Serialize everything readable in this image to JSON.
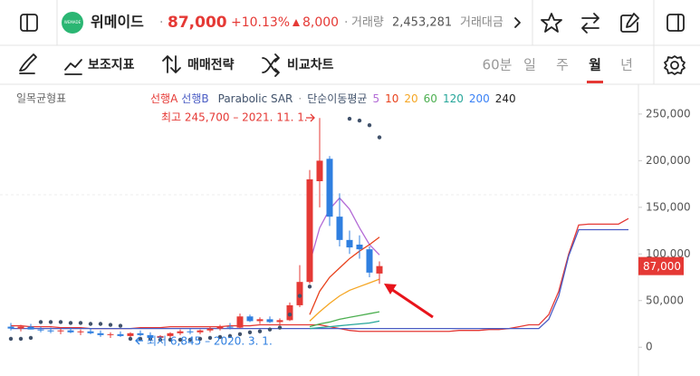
{
  "header": {
    "logo": "WEMADE",
    "name": "위메이드",
    "price": "87,000",
    "change_pct": "+10.13%",
    "change": "8,000",
    "volume_label": "거래량",
    "volume": "2,453,281",
    "amount_label": "거래대금"
  },
  "toolbar": {
    "indicators": "보조지표",
    "strategy": "매매전략",
    "compare": "비교차트",
    "periods": [
      "60분",
      "일",
      "주",
      "월",
      "년"
    ],
    "selected_period": 3
  },
  "chart_data": {
    "type": "candlestick",
    "indicator_label": "일목균형표",
    "ma_label": "단순이동평균",
    "high_label": "최고 245,700 – 2021. 11. 1.",
    "low_label": "최저 6,845 – 2020. 3. 1.",
    "categories": [
      null,
      null,
      null,
      null,
      null,
      null,
      null,
      null,
      null,
      null,
      null,
      null,
      null,
      null,
      null,
      null,
      null,
      null,
      null,
      null,
      null,
      null,
      null,
      null,
      null,
      null,
      null,
      null,
      null,
      null,
      null,
      null,
      null,
      null,
      null,
      null,
      null,
      null,
      null,
      null,
      null,
      null,
      null,
      null,
      null,
      null,
      null,
      null,
      null,
      null,
      null,
      null,
      null,
      null,
      null,
      null,
      null,
      null,
      null,
      null,
      null,
      null,
      null
    ],
    "open": [
      22000,
      20000,
      22000,
      19000,
      18000,
      17000,
      18000,
      16000,
      17000,
      15000,
      13000,
      14000,
      12000,
      15000,
      13000,
      10000,
      12000,
      15000,
      17000,
      16000,
      18000,
      20000,
      22000,
      21000,
      33000,
      28000,
      30000,
      27000,
      29000,
      45000,
      70000,
      178000,
      202000,
      140000,
      115000,
      110000,
      105000,
      79000,
      null,
      null,
      null,
      null,
      null,
      null,
      null,
      null,
      null,
      null,
      null,
      null,
      null,
      null,
      null,
      null,
      null,
      null,
      null,
      null,
      null,
      null,
      null,
      null,
      null
    ],
    "high": [
      26000,
      24000,
      25000,
      22000,
      21000,
      20000,
      21000,
      19000,
      20000,
      18000,
      16000,
      17000,
      16000,
      18000,
      16000,
      13000,
      16000,
      19000,
      20000,
      19000,
      22000,
      24000,
      26000,
      36000,
      35000,
      32000,
      33000,
      31000,
      48000,
      88000,
      190000,
      245700,
      205000,
      165000,
      125000,
      120000,
      108000,
      92000,
      null,
      null,
      null,
      null,
      null,
      null,
      null,
      null,
      null,
      null,
      null,
      null,
      null,
      null,
      null,
      null,
      null,
      null,
      null,
      null,
      null,
      null,
      null,
      null,
      null
    ],
    "low": [
      18000,
      17000,
      19000,
      16000,
      15000,
      14000,
      15000,
      13000,
      14000,
      11000,
      10000,
      11000,
      9000,
      12000,
      9000,
      6845,
      10000,
      13000,
      14000,
      14000,
      16000,
      18000,
      19000,
      20000,
      27000,
      25000,
      26000,
      24000,
      28000,
      43000,
      68000,
      150000,
      130000,
      108000,
      100000,
      95000,
      75000,
      68000,
      null,
      null,
      null,
      null,
      null,
      null,
      null,
      null,
      null,
      null,
      null,
      null,
      null,
      null,
      null,
      null,
      null,
      null,
      null,
      null,
      null,
      null,
      null,
      null,
      null
    ],
    "close": [
      20000,
      22000,
      19000,
      18000,
      17000,
      18000,
      16000,
      17000,
      15000,
      13000,
      14000,
      12000,
      15000,
      13000,
      10000,
      12000,
      15000,
      17000,
      16000,
      18000,
      20000,
      22000,
      21000,
      33000,
      28000,
      30000,
      27000,
      29000,
      45000,
      70000,
      180000,
      200000,
      140000,
      115000,
      107000,
      105000,
      80000,
      87000,
      null,
      null,
      null,
      null,
      null,
      null,
      null,
      null,
      null,
      null,
      null,
      null,
      null,
      null,
      null,
      null,
      null,
      null,
      null,
      null,
      null,
      null,
      null,
      null,
      null
    ],
    "up_color": "#e53935",
    "down_color": "#2f7fe0",
    "series": [
      {
        "name": "선행A",
        "color": "#e53935",
        "values": [
          23000,
          23000,
          22000,
          22000,
          22000,
          21000,
          21000,
          21000,
          20000,
          20000,
          20000,
          20000,
          20000,
          21000,
          21000,
          21000,
          22000,
          22000,
          22000,
          22000,
          22000,
          22000,
          23000,
          23000,
          23000,
          24000,
          24000,
          24000,
          24000,
          24000,
          24000,
          24000,
          22000,
          20000,
          18000,
          17000,
          17000,
          17000,
          17000,
          17000,
          17000,
          17000,
          17000,
          17000,
          17000,
          18000,
          18000,
          18000,
          19000,
          19000,
          20000,
          22000,
          24000,
          24000,
          35000,
          60000,
          100000,
          131000,
          132000,
          132000,
          132000,
          132000,
          138000
        ]
      },
      {
        "name": "선행B",
        "color": "#4a5cc4",
        "values": [
          20000,
          20000,
          20000,
          20000,
          20000,
          20000,
          20000,
          20000,
          20000,
          20000,
          20000,
          20000,
          20000,
          20000,
          20000,
          20000,
          20000,
          20000,
          20000,
          20000,
          20000,
          20000,
          20000,
          20000,
          20000,
          20000,
          20000,
          20000,
          20000,
          20000,
          20000,
          20000,
          20000,
          20000,
          20000,
          20000,
          20000,
          20000,
          20000,
          20000,
          20000,
          20000,
          20000,
          20000,
          20000,
          20000,
          20000,
          20000,
          20000,
          20000,
          20000,
          20000,
          20000,
          20000,
          30000,
          55000,
          98000,
          126000,
          126000,
          126000,
          126000,
          126000,
          126000
        ]
      },
      {
        "name": "5",
        "color": "#b36bd6",
        "values": [
          null,
          null,
          null,
          null,
          null,
          null,
          null,
          null,
          null,
          null,
          null,
          null,
          null,
          null,
          null,
          null,
          null,
          null,
          null,
          null,
          null,
          null,
          null,
          null,
          null,
          null,
          null,
          null,
          null,
          null,
          90000,
          128000,
          148000,
          160000,
          148000,
          128000,
          110000,
          99000,
          null,
          null,
          null,
          null,
          null,
          null,
          null,
          null,
          null,
          null,
          null,
          null,
          null,
          null,
          null,
          null,
          null,
          null,
          null,
          null,
          null,
          null,
          null,
          null,
          null
        ]
      },
      {
        "name": "10",
        "color": "#e8421d",
        "values": [
          null,
          null,
          null,
          null,
          null,
          null,
          null,
          null,
          null,
          null,
          null,
          null,
          null,
          null,
          null,
          null,
          null,
          null,
          null,
          null,
          null,
          null,
          null,
          null,
          null,
          null,
          null,
          null,
          null,
          null,
          35000,
          60000,
          75000,
          85000,
          95000,
          103000,
          110000,
          118000,
          null,
          null,
          null,
          null,
          null,
          null,
          null,
          null,
          null,
          null,
          null,
          null,
          null,
          null,
          null,
          null,
          null,
          null,
          null,
          null,
          null,
          null,
          null,
          null,
          null
        ]
      },
      {
        "name": "20",
        "color": "#f5a623",
        "values": [
          null,
          null,
          null,
          null,
          null,
          null,
          null,
          null,
          null,
          null,
          null,
          null,
          null,
          null,
          null,
          null,
          null,
          null,
          null,
          null,
          null,
          null,
          null,
          null,
          null,
          null,
          null,
          null,
          null,
          null,
          28000,
          38000,
          47000,
          55000,
          61000,
          65000,
          69000,
          73000,
          null,
          null,
          null,
          null,
          null,
          null,
          null,
          null,
          null,
          null,
          null,
          null,
          null,
          null,
          null,
          null,
          null,
          null,
          null,
          null,
          null,
          null,
          null,
          null,
          null
        ]
      },
      {
        "name": "60",
        "color": "#4caf50",
        "values": [
          null,
          null,
          null,
          null,
          null,
          null,
          null,
          null,
          null,
          null,
          null,
          null,
          null,
          null,
          null,
          null,
          null,
          null,
          null,
          null,
          null,
          null,
          null,
          null,
          null,
          null,
          null,
          null,
          null,
          null,
          22000,
          25000,
          27000,
          30000,
          32000,
          34000,
          36000,
          38000,
          null,
          null,
          null,
          null,
          null,
          null,
          null,
          null,
          null,
          null,
          null,
          null,
          null,
          null,
          null,
          null,
          null,
          null,
          null,
          null,
          null,
          null,
          null,
          null,
          null
        ]
      },
      {
        "name": "120",
        "color": "#26a69a",
        "values": [
          null,
          null,
          null,
          null,
          null,
          null,
          null,
          null,
          null,
          null,
          null,
          null,
          null,
          null,
          null,
          null,
          null,
          null,
          null,
          null,
          null,
          null,
          null,
          null,
          null,
          null,
          null,
          null,
          null,
          null,
          20000,
          21000,
          22000,
          23000,
          24000,
          25000,
          26000,
          28000,
          null,
          null,
          null,
          null,
          null,
          null,
          null,
          null,
          null,
          null,
          null,
          null,
          null,
          null,
          null,
          null,
          null,
          null,
          null,
          null,
          null,
          null,
          null,
          null,
          null
        ]
      },
      {
        "name": "200",
        "color": "#3b82f6",
        "values": [
          null,
          null,
          null,
          null,
          null,
          null,
          null,
          null,
          null,
          null,
          null,
          null,
          null,
          null,
          null,
          null,
          null,
          null,
          null,
          null,
          null,
          null,
          null,
          null,
          null,
          null,
          null,
          null,
          null,
          null,
          null,
          null,
          null,
          null,
          null,
          null,
          null,
          null,
          null,
          null,
          null,
          null,
          null,
          null,
          null,
          null,
          null,
          null,
          null,
          null,
          null,
          null,
          null,
          null,
          null,
          null,
          null,
          null,
          null,
          null,
          null,
          null,
          null
        ]
      },
      {
        "name": "240",
        "color": "#222222",
        "values": [
          null,
          null,
          null,
          null,
          null,
          null,
          null,
          null,
          null,
          null,
          null,
          null,
          null,
          null,
          null,
          null,
          null,
          null,
          null,
          null,
          null,
          null,
          null,
          null,
          null,
          null,
          null,
          null,
          null,
          null,
          null,
          null,
          null,
          null,
          null,
          null,
          null,
          null,
          null,
          null,
          null,
          null,
          null,
          null,
          null,
          null,
          null,
          null,
          null,
          null,
          null,
          null,
          null,
          null,
          null,
          null,
          null,
          null,
          null,
          null,
          null,
          null,
          null
        ]
      }
    ],
    "sar": {
      "name": "Parabolic SAR",
      "color": "#41526b",
      "values": [
        9000,
        9000,
        10000,
        27000,
        27000,
        27000,
        26000,
        26000,
        25000,
        25000,
        24000,
        23000,
        9000,
        9000,
        9000,
        8000,
        8000,
        8000,
        8000,
        9000,
        10000,
        11000,
        12000,
        14000,
        16000,
        17000,
        19000,
        21000,
        35000,
        55000,
        65000,
        null,
        null,
        null,
        245000,
        243000,
        238000,
        225000,
        null,
        null,
        null,
        null,
        null,
        null,
        null,
        null,
        null,
        null,
        null,
        null,
        null,
        null,
        null,
        null,
        null,
        null,
        null,
        null,
        null,
        null,
        null,
        null,
        null
      ]
    },
    "ylim": [
      -26000,
      280000
    ],
    "yticks": [
      0,
      {
        "value": 50000,
        "label": "50,000"
      },
      {
        "value": 100000,
        "label": "100,000"
      },
      {
        "value": 150000,
        "label": "150,000"
      },
      {
        "value": 200000,
        "label": "200,000"
      },
      {
        "value": 250000,
        "label": "250,000"
      }
    ],
    "last_price": 87000,
    "last_price_label": "87,000"
  }
}
